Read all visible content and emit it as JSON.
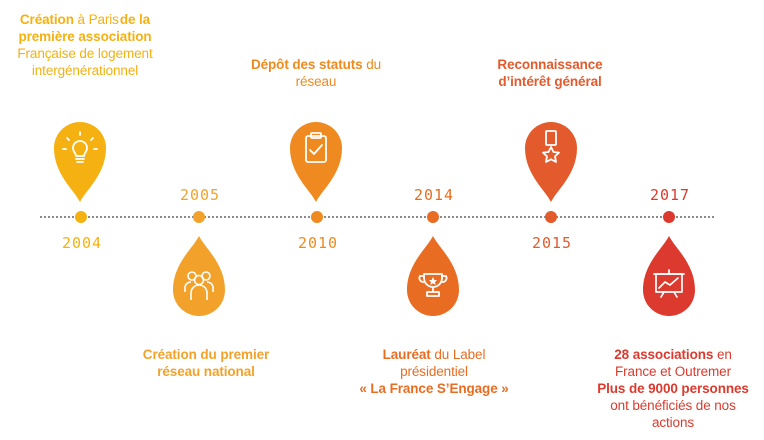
{
  "colors": {
    "yellow": "#f5b011",
    "light_orange": "#f2a22b",
    "orange": "#ee8a1f",
    "dark_orange": "#e86d23",
    "red_orange": "#e35a2c",
    "red": "#dc3a2e",
    "line": "#8a8a8a"
  },
  "events": [
    {
      "year": "2004",
      "line1_bold": "Création",
      "line1_rest": " à Paris",
      "line1_bold2": "de la",
      "line2_bold": "première association",
      "line3": "Française de logement",
      "line4": "intergénérationnel",
      "icon": "lightbulb-icon"
    },
    {
      "year": "2005",
      "line1_bold": "Création du premier",
      "line2_bold": "réseau national",
      "icon": "people-group-icon"
    },
    {
      "year": "2010",
      "line1_bold": "Dépôt des statuts",
      "line1_rest": " du",
      "line2": "réseau",
      "icon": "clipboard-check-icon"
    },
    {
      "year": "2014",
      "line1_bold": "Lauréat",
      "line1_rest": " du Label",
      "line2": "présidentiel",
      "line3_bold": "« La France S’Engage »",
      "icon": "trophy-icon"
    },
    {
      "year": "2015",
      "line1_bold": "Reconnaissance",
      "line2_bold": "d’intérêt général",
      "icon": "medal-icon"
    },
    {
      "year": "2017",
      "line1_bold": "28 associations",
      "line1_rest": " en",
      "line2": "France et Outremer",
      "line3_bold": "Plus de 9000 personnes",
      "line4": "ont bénéficiés de nos",
      "line5": "actions",
      "icon": "chart-board-icon"
    }
  ]
}
